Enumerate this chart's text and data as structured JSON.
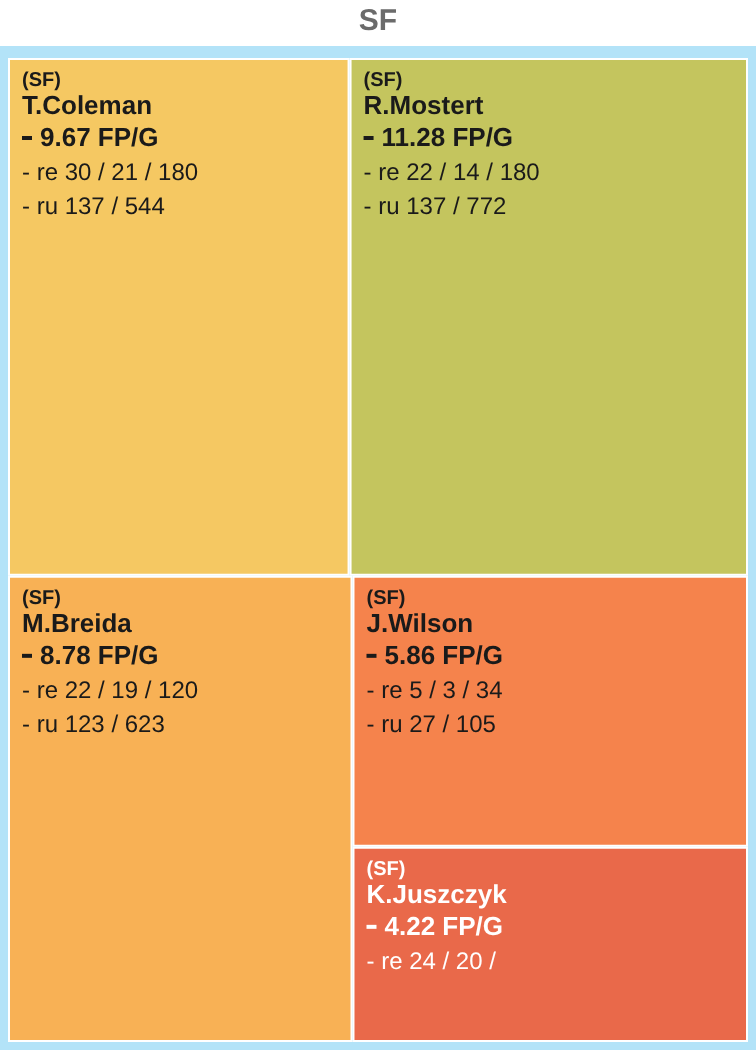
{
  "chart_data": {
    "type": "other",
    "title": "SF",
    "categories": [
      "T.Coleman",
      "R.Mostert",
      "M.Breida",
      "J.Wilson",
      "K.Juszczyk"
    ],
    "values": [
      9.67,
      11.28,
      8.78,
      5.86,
      4.22
    ],
    "value_labels": [
      "9.67 FP/G",
      "11.28 FP/G",
      "8.78 FP/G",
      "5.86 FP/G",
      "4.22 FP/G"
    ],
    "colors": [
      "#f5c862",
      "#c4c55e",
      "#f8b155",
      "#f5834c",
      "#e9694a"
    ],
    "annotations": [
      {
        "text": "(SF)",
        "x": "T.Coleman"
      },
      {
        "text": "- re 30 / 21 / 180",
        "x": "T.Coleman"
      },
      {
        "text": "- ru 137 / 544",
        "x": "T.Coleman"
      },
      {
        "text": "(SF)",
        "x": "R.Mostert"
      },
      {
        "text": "- re 22 / 14 / 180",
        "x": "R.Mostert"
      },
      {
        "text": "- ru 137 / 772",
        "x": "R.Mostert"
      },
      {
        "text": "(SF)",
        "x": "M.Breida"
      },
      {
        "text": "- re 22 / 19 / 120",
        "x": "M.Breida"
      },
      {
        "text": "- ru 123 / 623",
        "x": "M.Breida"
      },
      {
        "text": "(SF)",
        "x": "J.Wilson"
      },
      {
        "text": "- re 5 / 3 / 34",
        "x": "J.Wilson"
      },
      {
        "text": "- ru 27 / 105",
        "x": "J.Wilson"
      },
      {
        "text": "(SF)",
        "x": "K.Juszczyk"
      },
      {
        "text": "- re 24 / 20 /",
        "x": "K.Juszczyk"
      }
    ]
  }
}
